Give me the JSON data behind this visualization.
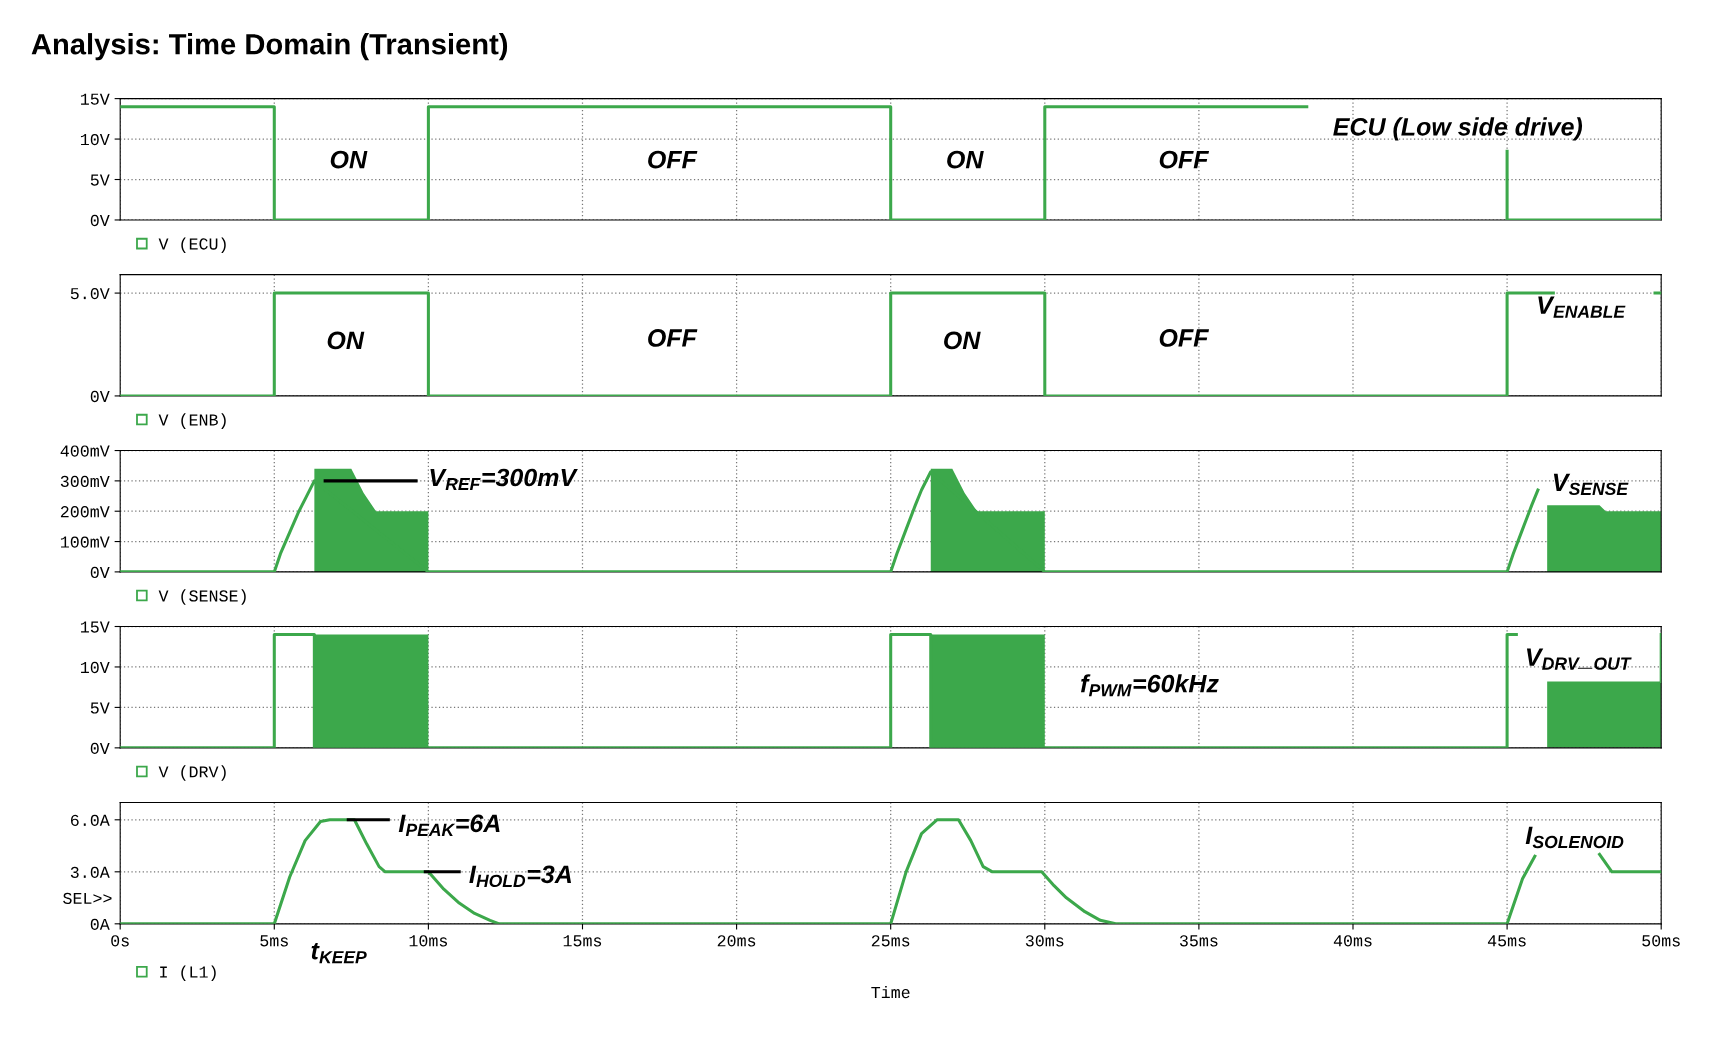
{
  "chart_data": [
    {
      "type": "line",
      "title": "Analysis: Time Domain (Transient)",
      "xlim": [
        0,
        50
      ],
      "xticks": [
        {
          "value": 0,
          "label": null
        },
        {
          "value": 5,
          "label": null
        },
        {
          "value": 10,
          "label": null
        },
        {
          "value": 15,
          "label": null
        },
        {
          "value": 20,
          "label": null
        },
        {
          "value": 25,
          "label": null
        },
        {
          "value": 30,
          "label": null
        },
        {
          "value": 35,
          "label": null
        },
        {
          "value": 40,
          "label": null
        },
        {
          "value": 45,
          "label": null
        },
        {
          "value": 50,
          "label": null
        }
      ],
      "ylim": [
        0,
        15
      ],
      "yticks": [
        {
          "value": 0,
          "label": "0V"
        },
        {
          "value": 5,
          "label": "5V"
        },
        {
          "value": 10,
          "label": "10V"
        },
        {
          "value": 15,
          "label": "15V"
        }
      ],
      "grid": true,
      "legend": "bottom left",
      "tick_labels": "y",
      "series": [
        {
          "name": "V (ECU)",
          "color": "#3ca84b",
          "x": [
            0,
            5,
            5,
            10,
            10,
            25,
            25,
            30,
            30,
            38.5,
            41.7,
            45,
            45,
            50
          ],
          "values": [
            14,
            14,
            0,
            0,
            14,
            14,
            0,
            0,
            14,
            14,
            null,
            8.5,
            0,
            0
          ]
        }
      ],
      "annotations": [
        "ON",
        "OFF",
        "ON",
        "OFF",
        "ECU (Low side drive)"
      ]
    },
    {
      "type": "line",
      "xlim": [
        0,
        50
      ],
      "xticks": [
        {
          "value": 0,
          "label": null
        },
        {
          "value": 5,
          "label": null
        },
        {
          "value": 10,
          "label": null
        },
        {
          "value": 15,
          "label": null
        },
        {
          "value": 20,
          "label": null
        },
        {
          "value": 25,
          "label": null
        },
        {
          "value": 30,
          "label": null
        },
        {
          "value": 35,
          "label": null
        },
        {
          "value": 40,
          "label": null
        },
        {
          "value": 45,
          "label": null
        },
        {
          "value": 50,
          "label": null
        }
      ],
      "ylim": [
        0,
        5.9
      ],
      "yticks": [
        {
          "value": 0,
          "label": "0V"
        },
        {
          "value": 5,
          "label": "5.0V"
        }
      ],
      "grid": true,
      "legend": "bottom left",
      "tick_labels": "y",
      "series": [
        {
          "name": "V (ENB)",
          "color": "#3ca84b",
          "x": [
            0,
            5,
            5,
            10,
            10,
            25,
            25,
            30,
            30,
            45,
            45,
            46.5,
            48,
            49.8,
            50
          ],
          "values": [
            0,
            0,
            5,
            5,
            0,
            0,
            5,
            5,
            0,
            0,
            5,
            5,
            null,
            5,
            5
          ]
        }
      ],
      "annotations": [
        "ON",
        "OFF",
        "ON",
        "OFF",
        "V$_{ENABLE}$"
      ]
    },
    {
      "type": "line",
      "xlim": [
        0,
        50
      ],
      "xticks": [
        {
          "value": 0,
          "label": null
        },
        {
          "value": 5,
          "label": null
        },
        {
          "value": 10,
          "label": null
        },
        {
          "value": 15,
          "label": null
        },
        {
          "value": 20,
          "label": null
        },
        {
          "value": 25,
          "label": null
        },
        {
          "value": 30,
          "label": null
        },
        {
          "value": 35,
          "label": null
        },
        {
          "value": 40,
          "label": null
        },
        {
          "value": 45,
          "label": null
        },
        {
          "value": 50,
          "label": null
        }
      ],
      "ylim": [
        0,
        400
      ],
      "yticks": [
        {
          "value": 0,
          "label": "0V"
        },
        {
          "value": 100,
          "label": "100mV"
        },
        {
          "value": 200,
          "label": "200mV"
        },
        {
          "value": 300,
          "label": "300mV"
        },
        {
          "value": 400,
          "label": "400mV"
        }
      ],
      "grid": true,
      "legend": "bottom left",
      "tick_labels": "y",
      "series": [
        {
          "name": "V (SENSE)",
          "color": "#3ca84b",
          "x": [
            0,
            5,
            5.2,
            5.5,
            5.8,
            6.0,
            6.3,
            10,
            25,
            25.2,
            25.5,
            25.8,
            26.0,
            26.3,
            30,
            45,
            45.2,
            45.5,
            45.8,
            46.0
          ],
          "values": [
            0,
            0,
            60,
            130,
            200,
            240,
            300,
            0,
            0,
            60,
            140,
            220,
            270,
            330,
            0,
            0,
            60,
            140,
            220,
            270
          ]
        },
        {
          "type": "area",
          "color": "#3ca84b",
          "x": [
            6.3,
            7.5,
            7.9,
            8.3,
            10,
            18,
            26.3,
            27.0,
            27.4,
            27.8,
            30,
            38,
            46.3,
            48.0,
            48.2,
            50
          ],
          "values": [
            340,
            340,
            260,
            200,
            200,
            null,
            340,
            340,
            260,
            200,
            200,
            null,
            220,
            220,
            200,
            200
          ]
        },
        {
          "color": "#000000",
          "x": [
            6.65,
            9.6
          ],
          "values": [
            300,
            300
          ]
        }
      ],
      "annotations": [
        "V$_{REF}$=300mV",
        "V$_{SENSE}$"
      ]
    },
    {
      "type": "line",
      "xlim": [
        0,
        50
      ],
      "xticks": [
        {
          "value": 0,
          "label": null
        },
        {
          "value": 5,
          "label": null
        },
        {
          "value": 10,
          "label": null
        },
        {
          "value": 15,
          "label": null
        },
        {
          "value": 20,
          "label": null
        },
        {
          "value": 25,
          "label": null
        },
        {
          "value": 30,
          "label": null
        },
        {
          "value": 35,
          "label": null
        },
        {
          "value": 40,
          "label": null
        },
        {
          "value": 45,
          "label": null
        },
        {
          "value": 50,
          "label": null
        }
      ],
      "ylim": [
        0,
        15
      ],
      "yticks": [
        {
          "value": 0,
          "label": "0V"
        },
        {
          "value": 5,
          "label": "5V"
        },
        {
          "value": 10,
          "label": "10V"
        },
        {
          "value": 15,
          "label": "15V"
        }
      ],
      "grid": true,
      "legend": "bottom left",
      "tick_labels": "y",
      "series": [
        {
          "name": "V (DRV)",
          "color": "#3ca84b",
          "x": [
            0,
            5,
            5,
            6.3,
            6.3,
            10,
            25,
            25,
            26.3,
            26.3,
            30,
            45,
            45,
            45.3,
            47,
            50,
            50
          ],
          "values": [
            0,
            0,
            14,
            14,
            0,
            0,
            0,
            14,
            14,
            0,
            0,
            0,
            14,
            14,
            null,
            8.2,
            14
          ]
        },
        {
          "type": "area",
          "color": "#3ca84b",
          "x": [
            6.3,
            10,
            18,
            26.3,
            30,
            38,
            46.3,
            50
          ],
          "values": [
            14,
            14,
            null,
            14,
            14,
            null,
            8.2,
            8.2
          ]
        }
      ],
      "annotations": [
        "f$_{PWM}$=60kHz",
        "V$_{DRV}$_$_{OUT}$"
      ]
    },
    {
      "type": "line",
      "xlabel": "Time",
      "xlim": [
        0,
        50
      ],
      "xticks": [
        {
          "value": 0,
          "label": "0s"
        },
        {
          "value": 5,
          "label": "5ms"
        },
        {
          "value": 10,
          "label": "10ms"
        },
        {
          "value": 15,
          "label": "15ms"
        },
        {
          "value": 20,
          "label": "20ms"
        },
        {
          "value": 25,
          "label": "25ms"
        },
        {
          "value": 30,
          "label": "30ms"
        },
        {
          "value": 35,
          "label": "35ms"
        },
        {
          "value": 40,
          "label": "40ms"
        },
        {
          "value": 45,
          "label": "45ms"
        },
        {
          "value": 50,
          "label": "50ms"
        }
      ],
      "ylim": [
        0,
        7
      ],
      "yticks": [
        {
          "value": 0,
          "label": "0A"
        },
        {
          "value": 3,
          "label": "3.0A"
        },
        {
          "value": 6,
          "label": "6.0A"
        }
      ],
      "grid": true,
      "legend": "bottom left",
      "series": [
        {
          "name": "I (L1)",
          "color": "#3ca84b",
          "x": [
            0,
            5,
            5.5,
            6.0,
            6.5,
            6.8,
            7.6,
            8.0,
            8.4,
            8.6,
            10,
            10.5,
            11,
            11.5,
            12,
            12.3,
            25,
            25.5,
            26,
            26.5,
            27.2,
            27.6,
            28,
            28.3,
            29.9,
            30.3,
            30.7,
            31.3,
            31.8,
            32.3,
            45,
            45.5,
            45.9,
            47,
            48,
            48.4,
            50
          ],
          "values": [
            0,
            0,
            2.7,
            4.8,
            5.9,
            6,
            6,
            4.6,
            3.3,
            3,
            3,
            2,
            1.2,
            0.6,
            0.2,
            0,
            0,
            3,
            5.2,
            6,
            6,
            4.8,
            3.3,
            3,
            3,
            2.2,
            1.5,
            0.7,
            0.2,
            0,
            0,
            2.6,
            3.9,
            null,
            4.0,
            3,
            3
          ]
        },
        {
          "color": "#000000",
          "x": [
            7.4,
            8.7
          ],
          "values": [
            6,
            6
          ]
        },
        {
          "color": "#000000",
          "x": [
            9.9,
            11.0
          ],
          "values": [
            3,
            3
          ]
        }
      ],
      "annotations": [
        "I$_{PEAK}$=6A",
        "I$_{HOLD}$=3A",
        "t$_{KEEP}$",
        "I$_{SOLENOID}$",
        "SEL>>"
      ]
    }
  ]
}
